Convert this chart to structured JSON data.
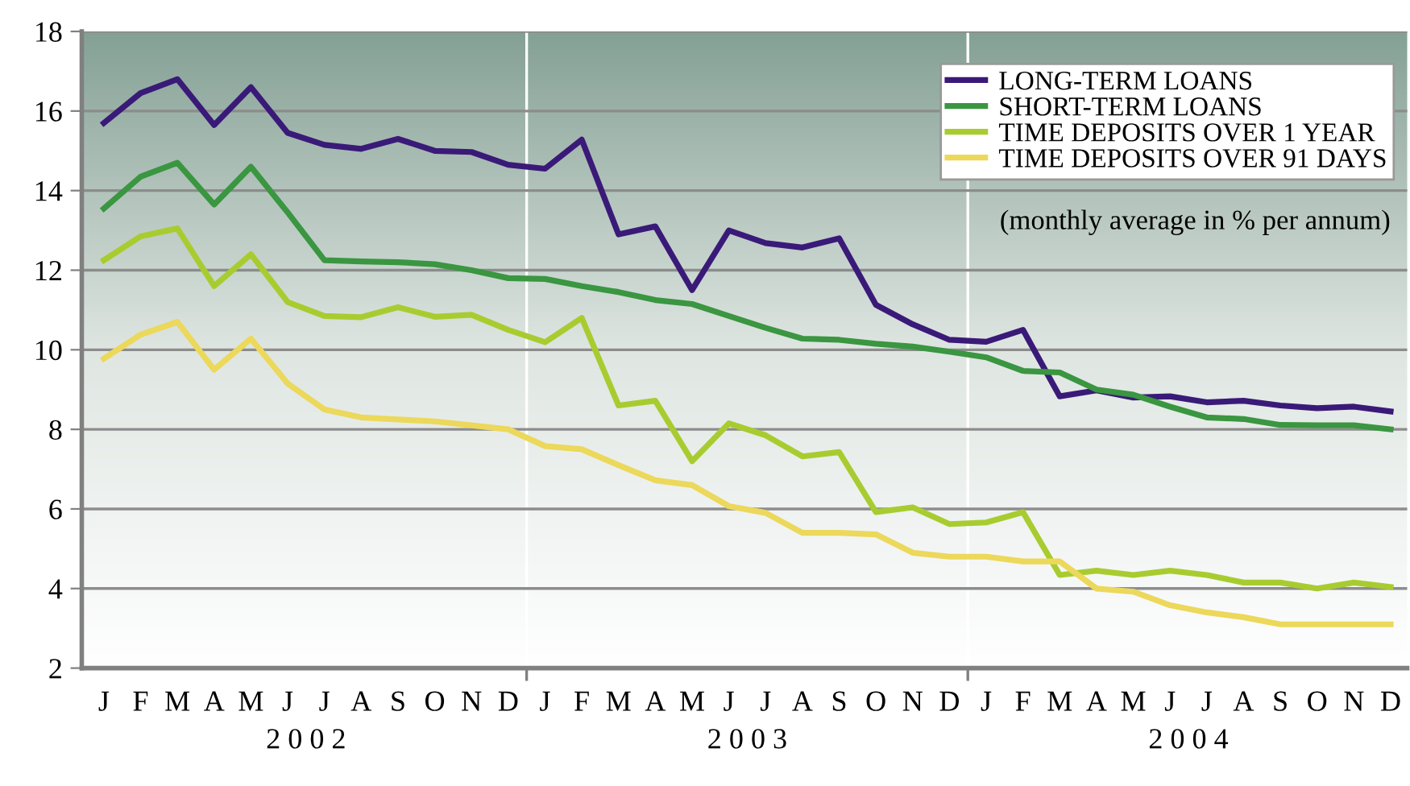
{
  "chart_data": {
    "type": "line",
    "categories": [
      "J",
      "F",
      "M",
      "A",
      "M",
      "J",
      "J",
      "A",
      "S",
      "O",
      "N",
      "D",
      "J",
      "F",
      "M",
      "A",
      "M",
      "J",
      "J",
      "A",
      "S",
      "O",
      "N",
      "D",
      "J",
      "F",
      "M",
      "A",
      "M",
      "J",
      "J",
      "A",
      "S",
      "O",
      "N",
      "D"
    ],
    "series": [
      {
        "name": "LONG-TERM LOANS",
        "color": "#3a1a78",
        "values": [
          15.7,
          16.45,
          16.8,
          15.65,
          16.6,
          15.45,
          15.15,
          15.05,
          15.3,
          15.0,
          14.97,
          14.65,
          14.55,
          15.28,
          12.9,
          13.1,
          11.5,
          13.0,
          12.68,
          12.57,
          12.8,
          11.13,
          10.64,
          10.25,
          10.2,
          10.5,
          8.83,
          8.98,
          8.8,
          8.83,
          8.68,
          8.72,
          8.6,
          8.53,
          8.57,
          8.45
        ]
      },
      {
        "name": "SHORT-TERM LOANS",
        "color": "#3a9640",
        "values": [
          13.55,
          14.35,
          14.7,
          13.65,
          14.6,
          13.45,
          12.25,
          12.22,
          12.2,
          12.15,
          12.0,
          11.8,
          11.78,
          11.6,
          11.45,
          11.25,
          11.15,
          10.85,
          10.55,
          10.28,
          10.25,
          10.15,
          10.08,
          9.95,
          9.81,
          9.47,
          9.43,
          9.0,
          8.87,
          8.57,
          8.3,
          8.26,
          8.11,
          8.1,
          8.1,
          8.0
        ]
      },
      {
        "name": "TIME DEPOSITS OVER 1 YEAR",
        "color": "#a8cc30",
        "values": [
          12.25,
          12.85,
          13.05,
          11.6,
          12.4,
          11.2,
          10.85,
          10.82,
          11.07,
          10.83,
          10.88,
          10.5,
          10.19,
          10.8,
          8.6,
          8.72,
          7.2,
          8.15,
          7.85,
          7.32,
          7.43,
          5.92,
          6.04,
          5.62,
          5.66,
          5.92,
          4.34,
          4.45,
          4.34,
          4.45,
          4.34,
          4.15,
          4.15,
          4.0,
          4.15,
          4.04
        ]
      },
      {
        "name": "TIME DEPOSITS OVER 91 DAYS",
        "color": "#ecd85a",
        "values": [
          9.78,
          10.38,
          10.7,
          9.5,
          10.28,
          9.15,
          8.5,
          8.3,
          8.25,
          8.2,
          8.1,
          8.0,
          7.58,
          7.5,
          7.1,
          6.72,
          6.6,
          6.07,
          5.9,
          5.4,
          5.4,
          5.36,
          4.9,
          4.8,
          4.8,
          4.68,
          4.68,
          4.0,
          3.92,
          3.58,
          3.4,
          3.28,
          3.1,
          3.1,
          3.1,
          3.1
        ]
      }
    ],
    "annotations": [
      "(monthly average in % per annum)",
      "2 0 0 2",
      "2 0 0 3",
      "2 0 0 4"
    ],
    "ylim": [
      2,
      18
    ],
    "yticks": [
      2,
      4,
      6,
      8,
      10,
      12,
      14,
      16,
      18
    ],
    "grid": "y",
    "legend": "top right",
    "marker": "none",
    "line_style": "solid"
  }
}
